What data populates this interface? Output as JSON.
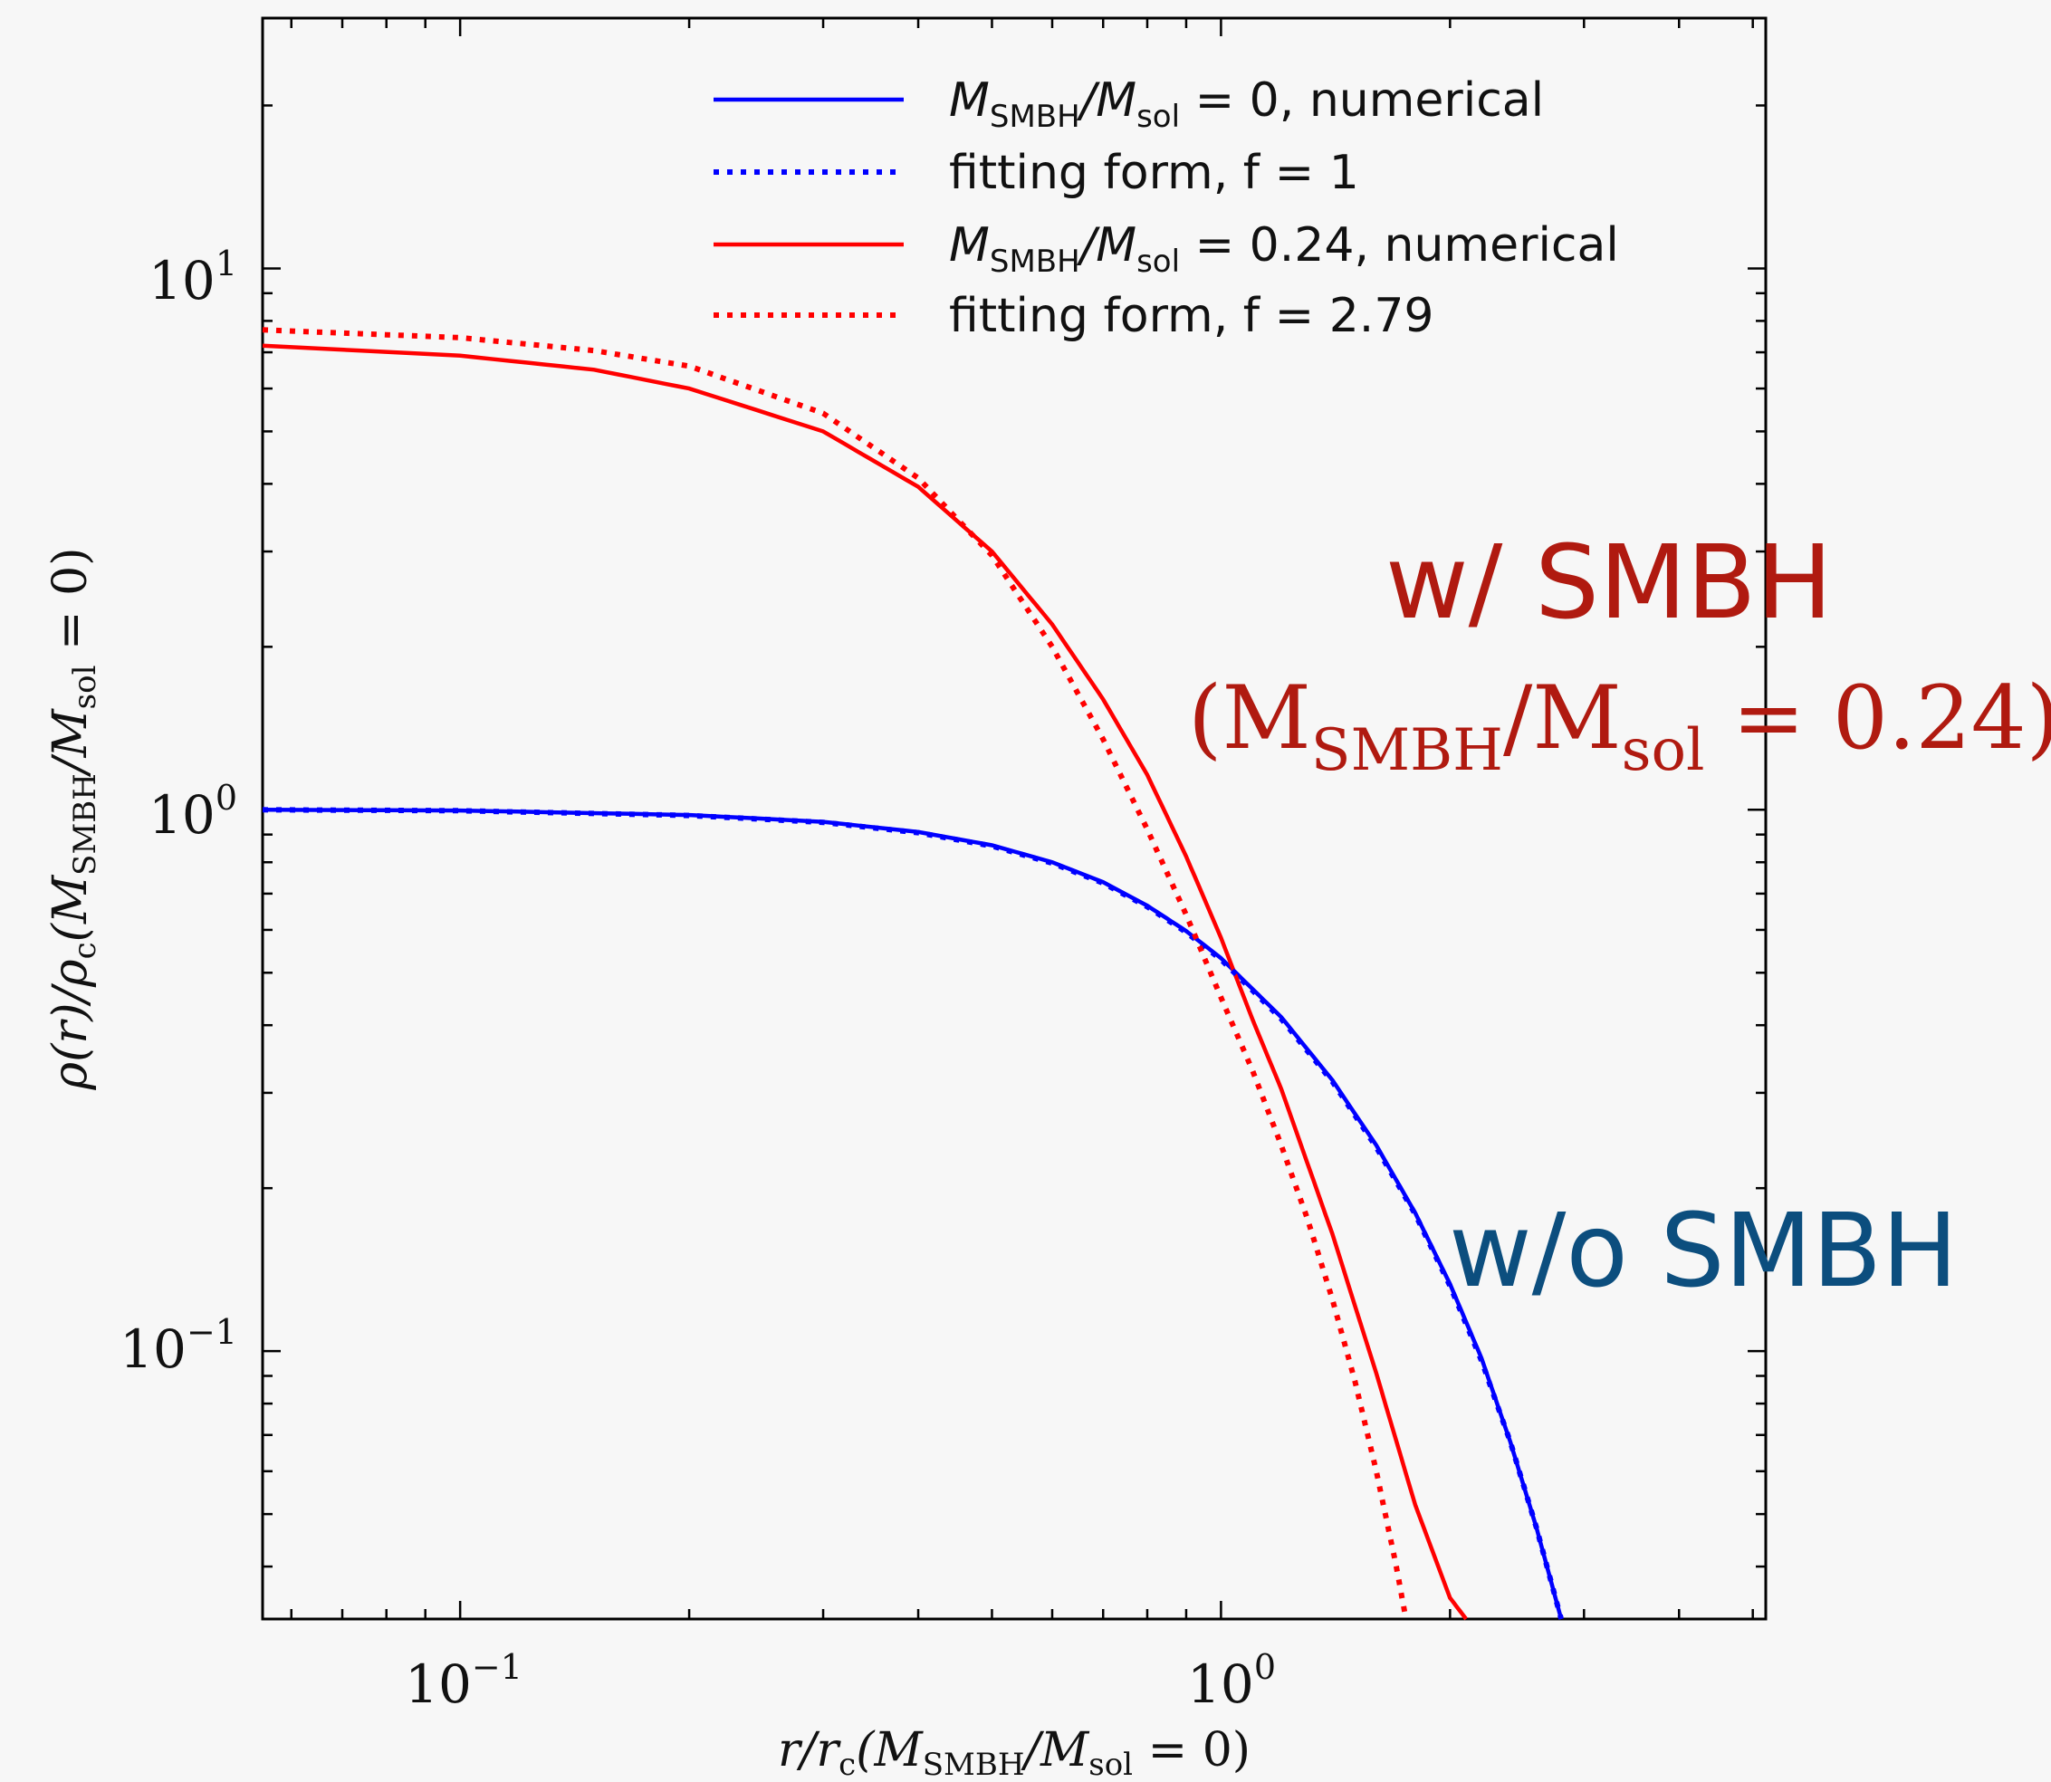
{
  "chart_data": {
    "type": "line",
    "xscale": "log",
    "yscale": "log",
    "xlim": [
      0.055,
      5.2
    ],
    "ylim": [
      0.032,
      29
    ],
    "xlabel": "r/r_c(M_SMBH/M_sol = 0)",
    "ylabel": "ρ(r)/ρ_c(M_SMBH/M_sol = 0)",
    "x_ticks": [
      {
        "value": 0.1,
        "base": "10",
        "exp": "−1"
      },
      {
        "value": 1,
        "base": "10",
        "exp": "0"
      }
    ],
    "y_ticks": [
      {
        "value": 0.1,
        "base": "10",
        "exp": "−1"
      },
      {
        "value": 1,
        "base": "10",
        "exp": "0"
      },
      {
        "value": 10,
        "base": "10",
        "exp": "1"
      }
    ],
    "legend_position": "top-right",
    "series": [
      {
        "name": "M_SMBH/M_sol = 0, numerical",
        "color": "#0000ff",
        "dash": "solid",
        "x": [
          0.055,
          0.1,
          0.2,
          0.3,
          0.4,
          0.5,
          0.6,
          0.7,
          0.8,
          0.9,
          1.0,
          1.2,
          1.4,
          1.6,
          1.8,
          2.0,
          2.2,
          2.4,
          2.6,
          2.8
        ],
        "y": [
          1.0,
          0.997,
          0.978,
          0.95,
          0.91,
          0.86,
          0.8,
          0.735,
          0.665,
          0.597,
          0.532,
          0.414,
          0.317,
          0.24,
          0.18,
          0.133,
          0.097,
          0.068,
          0.047,
          0.032
        ]
      },
      {
        "name": "fitting form, f = 1",
        "color": "#0000ff",
        "dash": "dotted",
        "x": [
          0.055,
          0.1,
          0.2,
          0.3,
          0.4,
          0.5,
          0.6,
          0.7,
          0.8,
          0.9,
          1.0,
          1.2,
          1.4,
          1.6,
          1.8,
          2.0,
          2.2,
          2.4,
          2.6,
          2.8
        ],
        "y": [
          1.0,
          0.996,
          0.976,
          0.948,
          0.907,
          0.857,
          0.797,
          0.732,
          0.662,
          0.594,
          0.529,
          0.411,
          0.315,
          0.238,
          0.179,
          0.132,
          0.096,
          0.068,
          0.047,
          0.032
        ]
      },
      {
        "name": "M_SMBH/M_sol = 0.24, numerical",
        "color": "#ff0000",
        "dash": "solid",
        "x": [
          0.055,
          0.1,
          0.15,
          0.2,
          0.3,
          0.4,
          0.5,
          0.6,
          0.7,
          0.8,
          0.9,
          1.0,
          1.1,
          1.2,
          1.4,
          1.6,
          1.8,
          2.0,
          2.1
        ],
        "y": [
          7.2,
          6.9,
          6.5,
          6.0,
          5.0,
          3.95,
          3.0,
          2.2,
          1.6,
          1.16,
          0.82,
          0.58,
          0.41,
          0.305,
          0.165,
          0.091,
          0.052,
          0.035,
          0.032
        ]
      },
      {
        "name": "fitting form, f = 2.79",
        "color": "#ff0000",
        "dash": "dotted",
        "x": [
          0.055,
          0.1,
          0.15,
          0.2,
          0.3,
          0.4,
          0.5,
          0.6,
          0.7,
          0.8,
          0.9,
          1.0,
          1.1,
          1.2,
          1.3,
          1.4,
          1.5,
          1.6,
          1.7,
          1.75
        ],
        "y": [
          7.7,
          7.45,
          7.05,
          6.6,
          5.4,
          4.1,
          2.95,
          2.0,
          1.35,
          0.92,
          0.64,
          0.45,
          0.33,
          0.24,
          0.175,
          0.125,
          0.088,
          0.06,
          0.04,
          0.032
        ]
      }
    ]
  },
  "legend": [
    {
      "prefix": "M",
      "sub1": "SMBH",
      "mid": "/M",
      "sub2": "sol",
      "suffix": " = 0, numerical",
      "color": "#0000ff",
      "dash": "solid"
    },
    {
      "text": "fitting form, f = 1",
      "color": "#0000ff",
      "dash": "dotted"
    },
    {
      "prefix": "M",
      "sub1": "SMBH",
      "mid": "/M",
      "sub2": "sol",
      "suffix": " = 0.24, numerical",
      "color": "#ff0000",
      "dash": "solid"
    },
    {
      "text": "fitting form, f = 2.79",
      "color": "#ff0000",
      "dash": "dotted"
    }
  ],
  "axis_labels": {
    "x": {
      "a": "r/r",
      "b": "c",
      "c": "(M",
      "d": "SMBH",
      "e": "/M",
      "f": "sol",
      "g": " = 0)"
    },
    "y": {
      "a": "ρ(r)/ρ",
      "b": "c",
      "c": "(M",
      "d": "SMBH",
      "e": "/M",
      "f": "sol",
      "g": " = 0)"
    }
  },
  "annotations": {
    "with_smbh": "w/ SMBH",
    "with_smbh_eq": {
      "a": "(M",
      "b": "SMBH",
      "c": "/M",
      "d": "sol",
      "e": " = 0.24)"
    },
    "without_smbh": "w/o SMBH"
  },
  "colors": {
    "annotation_red": "#b01a10",
    "annotation_blue": "#0c4e7e",
    "background": "#f7f7f7"
  }
}
